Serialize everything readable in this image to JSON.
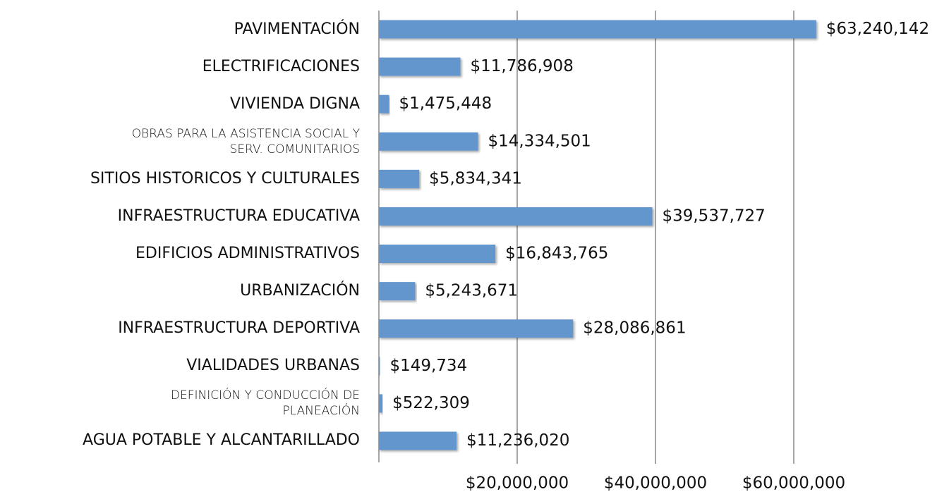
{
  "chart_data": {
    "type": "bar",
    "orientation": "horizontal",
    "categories": [
      "PAVIMENTACIÓN",
      "ELECTRIFICACIONES",
      "VIVIENDA DIGNA",
      "OBRAS PARA LA ASISTENCIA SOCIAL Y\nSERV. COMUNITARIOS",
      "SITIOS HISTORICOS Y CULTURALES",
      "INFRAESTRUCTURA EDUCATIVA",
      "EDIFICIOS ADMINISTRATIVOS",
      "URBANIZACIÓN",
      "INFRAESTRUCTURA DEPORTIVA",
      "VIALIDADES URBANAS",
      "DEFINICIÓN Y CONDUCCIÓN DE\nPLANEACIÓN",
      "AGUA POTABLE Y ALCANTARILLADO"
    ],
    "values": [
      63240142,
      11786908,
      1475448,
      14334501,
      5834341,
      39537727,
      16843765,
      5243671,
      28086861,
      149734,
      522309,
      11236020
    ],
    "value_labels": [
      "$63,240,142",
      "$11,786,908",
      "$1,475,448",
      "$14,334,501",
      "$5,834,341",
      "$39,537,727",
      "$16,843,765",
      "$5,243,671",
      "$28,086,861",
      "$149,734",
      "$522,309",
      "$11,236,020"
    ],
    "color": "#6496cd",
    "xlim": [
      0,
      70000000
    ],
    "xticks": [
      {
        "value": 20000000,
        "label": "$20,000,000"
      },
      {
        "value": 40000000,
        "label": "$40,000,000"
      },
      {
        "value": 60000000,
        "label": "$60,000,000"
      }
    ],
    "grid": true
  }
}
